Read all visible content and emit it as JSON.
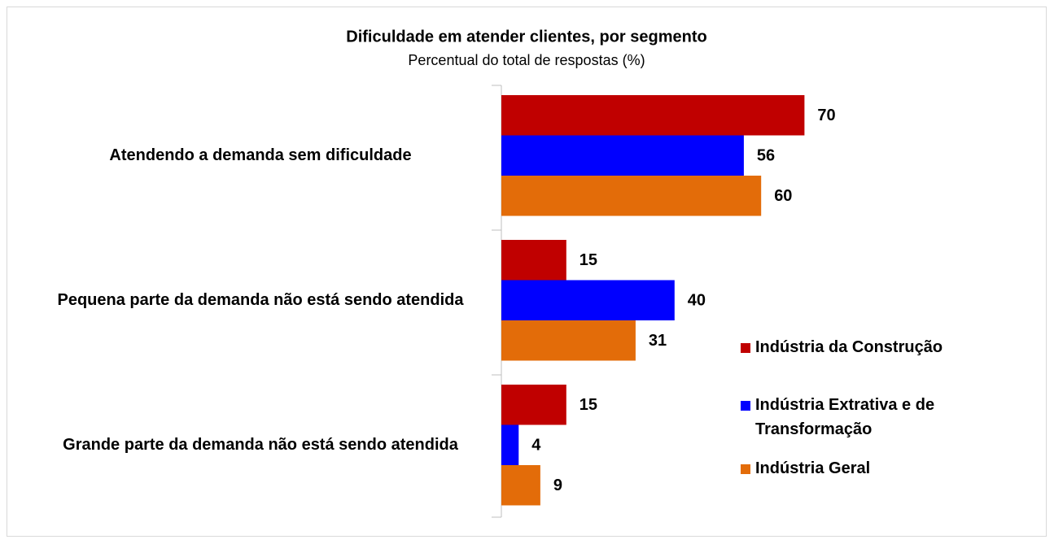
{
  "chart_data": {
    "type": "bar",
    "orientation": "horizontal",
    "title": "Dificuldade em atender clientes, por segmento",
    "subtitle": "Percentual do total de respostas (%)",
    "categories": [
      "Atendendo a demanda sem dificuldade",
      "Pequena parte da demanda não está sendo atendida",
      "Grande parte da demanda não está sendo atendida"
    ],
    "series": [
      {
        "name": "Indústria da Construção",
        "color": "#c00000",
        "values": [
          70,
          15,
          15
        ]
      },
      {
        "name": "Indústria Extrativa e de Transformação",
        "color": "#0000ff",
        "values": [
          56,
          40,
          4
        ]
      },
      {
        "name": "Indústria Geral",
        "color": "#e36c09",
        "values": [
          60,
          31,
          9
        ]
      }
    ],
    "legend": "right"
  }
}
